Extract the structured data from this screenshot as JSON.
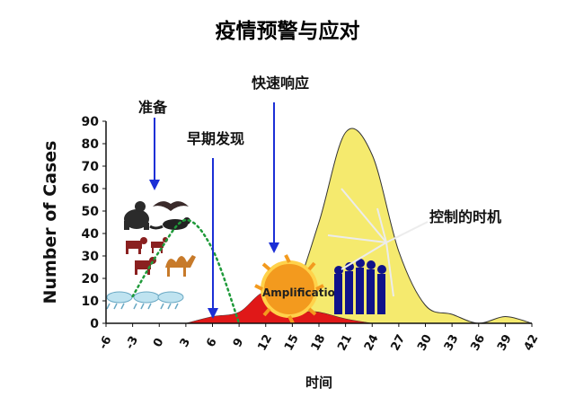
{
  "slide": {
    "title": "疫情预警与应对",
    "title_color": "#d6202a"
  },
  "annotations": {
    "prepare": "准备",
    "early_detection": "早期发现",
    "rapid_response": "快速响应",
    "control_timing": "控制的时机",
    "amplification": "Amplification",
    "arrow_color": "#1b2fd6"
  },
  "chart_data": {
    "type": "area",
    "title": "",
    "xlabel": "时间",
    "ylabel": "Number of Cases",
    "ylim": [
      0,
      90
    ],
    "yticks": [
      0,
      10,
      20,
      30,
      40,
      50,
      60,
      70,
      80,
      90
    ],
    "xtick_labels": [
      "-6",
      "-3",
      "0",
      "3",
      "6",
      "9",
      "12",
      "15",
      "18",
      "21",
      "24",
      "27",
      "30",
      "33",
      "36",
      "39",
      "42"
    ],
    "grid": false,
    "series": [
      {
        "style": "area",
        "color": "#f5ea6e",
        "x": [
          "9",
          "12",
          "15",
          "18",
          "21",
          "24",
          "27",
          "30",
          "33",
          "36",
          "39",
          "42"
        ],
        "values": [
          0,
          5,
          12,
          45,
          85,
          75,
          32,
          8,
          4,
          0,
          3,
          0
        ]
      },
      {
        "style": "area",
        "color": "#e01818",
        "x": [
          "3",
          "6",
          "9",
          "12",
          "15",
          "18",
          "21",
          "24"
        ],
        "values": [
          0,
          3,
          5,
          14,
          6,
          5,
          2,
          0
        ]
      },
      {
        "style": "dotted-line",
        "color": "#1f9a3a",
        "x": [
          "-3",
          "0",
          "3",
          "6",
          "9"
        ],
        "values": [
          12,
          32,
          46,
          33,
          0
        ]
      }
    ]
  }
}
